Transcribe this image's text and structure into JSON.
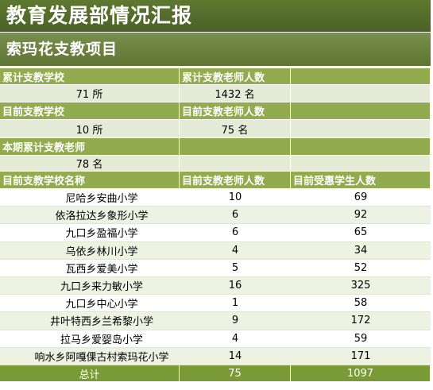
{
  "title": "教育发展部情况汇报",
  "subtitle": "索玛花支教项目",
  "summary": {
    "h1": "累计支教学校",
    "h2": "累计支教老师人数",
    "v1": "71 所",
    "v2": "1432 名",
    "h3": "目前支教学校",
    "h4": "目前支教老师人数",
    "v3": "10 所",
    "v4": "75 名",
    "h5": "本期累计支教老师",
    "v5": "78 名"
  },
  "table": {
    "columns": [
      "目前支教学校名称",
      "目前支教老师人数",
      "目前受惠学生人数"
    ],
    "rows": [
      {
        "name": "尼哈乡安曲小学",
        "teachers": "10",
        "students": "69"
      },
      {
        "name": "依洛拉达乡象形小学",
        "teachers": "6",
        "students": "92"
      },
      {
        "name": "九口乡盈福小学",
        "teachers": "6",
        "students": "65"
      },
      {
        "name": "乌依乡林川小学",
        "teachers": "4",
        "students": "34"
      },
      {
        "name": "瓦西乡爱美小学",
        "teachers": "5",
        "students": "52"
      },
      {
        "name": "九口乡来力敏小学",
        "teachers": "16",
        "students": "325"
      },
      {
        "name": "九口乡中心小学",
        "teachers": "1",
        "students": "58"
      },
      {
        "name": "井叶特西乡兰希黎小学",
        "teachers": "9",
        "students": "172"
      },
      {
        "name": "拉马乡爱婴岛小学",
        "teachers": "4",
        "students": "59"
      },
      {
        "name": "响水乡阿嘎倮古村索玛花小学",
        "teachers": "14",
        "students": "171"
      }
    ],
    "total": {
      "label": "总计",
      "teachers": "75",
      "students": "1097"
    }
  },
  "colors": {
    "title_bg": "#4f6628",
    "header_bg": "#91ab4e",
    "value_bg": "#e6ebd8",
    "total_bg": "#7a9a38"
  }
}
